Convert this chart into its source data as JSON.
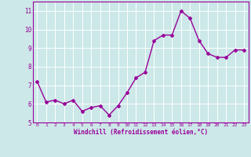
{
  "x": [
    0,
    1,
    2,
    3,
    4,
    5,
    6,
    7,
    8,
    9,
    10,
    11,
    12,
    13,
    14,
    15,
    16,
    17,
    18,
    19,
    20,
    21,
    22,
    23
  ],
  "y": [
    7.2,
    6.1,
    6.2,
    6.0,
    6.2,
    5.6,
    5.8,
    5.9,
    5.4,
    5.9,
    6.6,
    7.4,
    7.7,
    9.4,
    9.7,
    9.7,
    11.0,
    10.6,
    9.4,
    8.7,
    8.5,
    8.5,
    8.9,
    8.9
  ],
  "line_color": "#990099",
  "marker": "D",
  "marker_size": 2,
  "bg_color": "#cce8e8",
  "grid_color": "#ffffff",
  "xlabel": "Windchill (Refroidissement éolien,°C)",
  "xlabel_color": "#990099",
  "tick_color": "#990099",
  "ylim": [
    5,
    11.5
  ],
  "xlim": [
    -0.5,
    23.5
  ],
  "yticks": [
    5,
    6,
    7,
    8,
    9,
    10,
    11
  ],
  "xticks": [
    0,
    1,
    2,
    3,
    4,
    5,
    6,
    7,
    8,
    9,
    10,
    11,
    12,
    13,
    14,
    15,
    16,
    17,
    18,
    19,
    20,
    21,
    22,
    23
  ],
  "xtick_labels": [
    "0",
    "1",
    "2",
    "3",
    "4",
    "5",
    "6",
    "7",
    "8",
    "9",
    "10",
    "11",
    "12",
    "13",
    "14",
    "15",
    "16",
    "17",
    "18",
    "19",
    "20",
    "21",
    "22",
    "23"
  ],
  "spine_color": "#990099",
  "linewidth": 1.0
}
